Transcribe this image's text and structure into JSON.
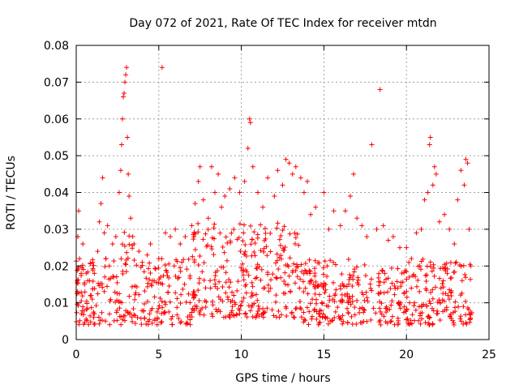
{
  "chart_data": {
    "type": "scatter",
    "title": "Day 072 of 2021, Rate Of TEC Index for receiver mtdn",
    "xlabel": "GPS time / hours",
    "ylabel": "ROTI / TECUs",
    "xlim": [
      0,
      25
    ],
    "ylim": [
      0,
      0.08
    ],
    "xticks": [
      0,
      5,
      10,
      15,
      20,
      25
    ],
    "xtick_labels": [
      "0",
      "5",
      "10",
      "15",
      "20",
      "25"
    ],
    "yticks": [
      0,
      0.01,
      0.02,
      0.03,
      0.04,
      0.05,
      0.06,
      0.07,
      0.08
    ],
    "ytick_labels": [
      "0",
      "0.01",
      "0.02",
      "0.03",
      "0.04",
      "0.05",
      "0.06",
      "0.07",
      "0.08"
    ],
    "grid": true,
    "series": [
      {
        "name": "ROTI",
        "marker": "+",
        "color": "#ff0000",
        "points": [
          [
            0.05,
            0.0125
          ],
          [
            0.1,
            0.028
          ],
          [
            0.15,
            0.035
          ],
          [
            0.2,
            0.022
          ],
          [
            0.3,
            0.018
          ],
          [
            0.4,
            0.026
          ],
          [
            0.5,
            0.015
          ],
          [
            0.7,
            0.016
          ],
          [
            0.9,
            0.012
          ],
          [
            1.0,
            0.021
          ],
          [
            1.1,
            0.018
          ],
          [
            1.3,
            0.024
          ],
          [
            1.4,
            0.032
          ],
          [
            1.5,
            0.037
          ],
          [
            1.6,
            0.044
          ],
          [
            1.7,
            0.029
          ],
          [
            1.8,
            0.022
          ],
          [
            1.9,
            0.031
          ],
          [
            2.0,
            0.02
          ],
          [
            2.2,
            0.026
          ],
          [
            2.4,
            0.028
          ],
          [
            2.6,
            0.04
          ],
          [
            2.7,
            0.046
          ],
          [
            2.75,
            0.053
          ],
          [
            2.8,
            0.06
          ],
          [
            2.85,
            0.066
          ],
          [
            2.9,
            0.067
          ],
          [
            2.95,
            0.07
          ],
          [
            3.0,
            0.072
          ],
          [
            3.05,
            0.074
          ],
          [
            3.1,
            0.055
          ],
          [
            3.15,
            0.045
          ],
          [
            3.2,
            0.039
          ],
          [
            3.3,
            0.033
          ],
          [
            3.5,
            0.026
          ],
          [
            3.8,
            0.024
          ],
          [
            4.0,
            0.021
          ],
          [
            4.3,
            0.023
          ],
          [
            4.5,
            0.026
          ],
          [
            5.0,
            0.022
          ],
          [
            5.2,
            0.074
          ],
          [
            5.4,
            0.029
          ],
          [
            5.7,
            0.028
          ],
          [
            6.0,
            0.03
          ],
          [
            6.3,
            0.026
          ],
          [
            6.6,
            0.028
          ],
          [
            7.0,
            0.031
          ],
          [
            7.2,
            0.037
          ],
          [
            7.4,
            0.043
          ],
          [
            7.5,
            0.047
          ],
          [
            7.7,
            0.038
          ],
          [
            8.0,
            0.033
          ],
          [
            8.2,
            0.047
          ],
          [
            8.4,
            0.04
          ],
          [
            8.6,
            0.045
          ],
          [
            8.8,
            0.036
          ],
          [
            9.0,
            0.039
          ],
          [
            9.3,
            0.041
          ],
          [
            9.6,
            0.044
          ],
          [
            9.9,
            0.04
          ],
          [
            10.2,
            0.043
          ],
          [
            10.4,
            0.052
          ],
          [
            10.5,
            0.06
          ],
          [
            10.55,
            0.059
          ],
          [
            10.7,
            0.047
          ],
          [
            11.0,
            0.04
          ],
          [
            11.3,
            0.036
          ],
          [
            11.6,
            0.044
          ],
          [
            12.0,
            0.039
          ],
          [
            12.2,
            0.046
          ],
          [
            12.5,
            0.042
          ],
          [
            12.7,
            0.049
          ],
          [
            12.9,
            0.048
          ],
          [
            13.1,
            0.045
          ],
          [
            13.3,
            0.047
          ],
          [
            13.6,
            0.044
          ],
          [
            13.8,
            0.04
          ],
          [
            14.0,
            0.043
          ],
          [
            14.2,
            0.034
          ],
          [
            14.5,
            0.036
          ],
          [
            15.0,
            0.04
          ],
          [
            15.3,
            0.03
          ],
          [
            15.6,
            0.035
          ],
          [
            16.0,
            0.031
          ],
          [
            16.3,
            0.035
          ],
          [
            16.6,
            0.039
          ],
          [
            16.8,
            0.045
          ],
          [
            17.0,
            0.033
          ],
          [
            17.3,
            0.031
          ],
          [
            17.6,
            0.028
          ],
          [
            17.9,
            0.053
          ],
          [
            18.2,
            0.03
          ],
          [
            18.4,
            0.068
          ],
          [
            18.6,
            0.031
          ],
          [
            18.9,
            0.027
          ],
          [
            19.2,
            0.028
          ],
          [
            19.6,
            0.025
          ],
          [
            20.0,
            0.025
          ],
          [
            20.3,
            0.022
          ],
          [
            20.6,
            0.029
          ],
          [
            20.9,
            0.03
          ],
          [
            21.1,
            0.038
          ],
          [
            21.3,
            0.04
          ],
          [
            21.4,
            0.053
          ],
          [
            21.45,
            0.055
          ],
          [
            21.6,
            0.042
          ],
          [
            21.7,
            0.047
          ],
          [
            21.8,
            0.045
          ],
          [
            22.0,
            0.032
          ],
          [
            22.3,
            0.034
          ],
          [
            22.6,
            0.03
          ],
          [
            22.9,
            0.026
          ],
          [
            23.1,
            0.038
          ],
          [
            23.3,
            0.046
          ],
          [
            23.5,
            0.042
          ],
          [
            23.6,
            0.049
          ],
          [
            23.7,
            0.048
          ],
          [
            23.8,
            0.03
          ],
          [
            23.9,
            0.02
          ]
        ],
        "density_bands": [
          {
            "x_start": 0.0,
            "x_end": 2.5,
            "y_min": 0.004,
            "y_max": 0.022,
            "density": 40
          },
          {
            "x_start": 2.5,
            "x_end": 3.5,
            "y_min": 0.004,
            "y_max": 0.03,
            "density": 40
          },
          {
            "x_start": 3.5,
            "x_end": 7.0,
            "y_min": 0.004,
            "y_max": 0.022,
            "density": 36
          },
          {
            "x_start": 7.0,
            "x_end": 13.5,
            "y_min": 0.006,
            "y_max": 0.032,
            "density": 44
          },
          {
            "x_start": 13.5,
            "x_end": 20.0,
            "y_min": 0.004,
            "y_max": 0.022,
            "density": 40
          },
          {
            "x_start": 20.0,
            "x_end": 24.0,
            "y_min": 0.004,
            "y_max": 0.022,
            "density": 40
          }
        ]
      }
    ]
  }
}
